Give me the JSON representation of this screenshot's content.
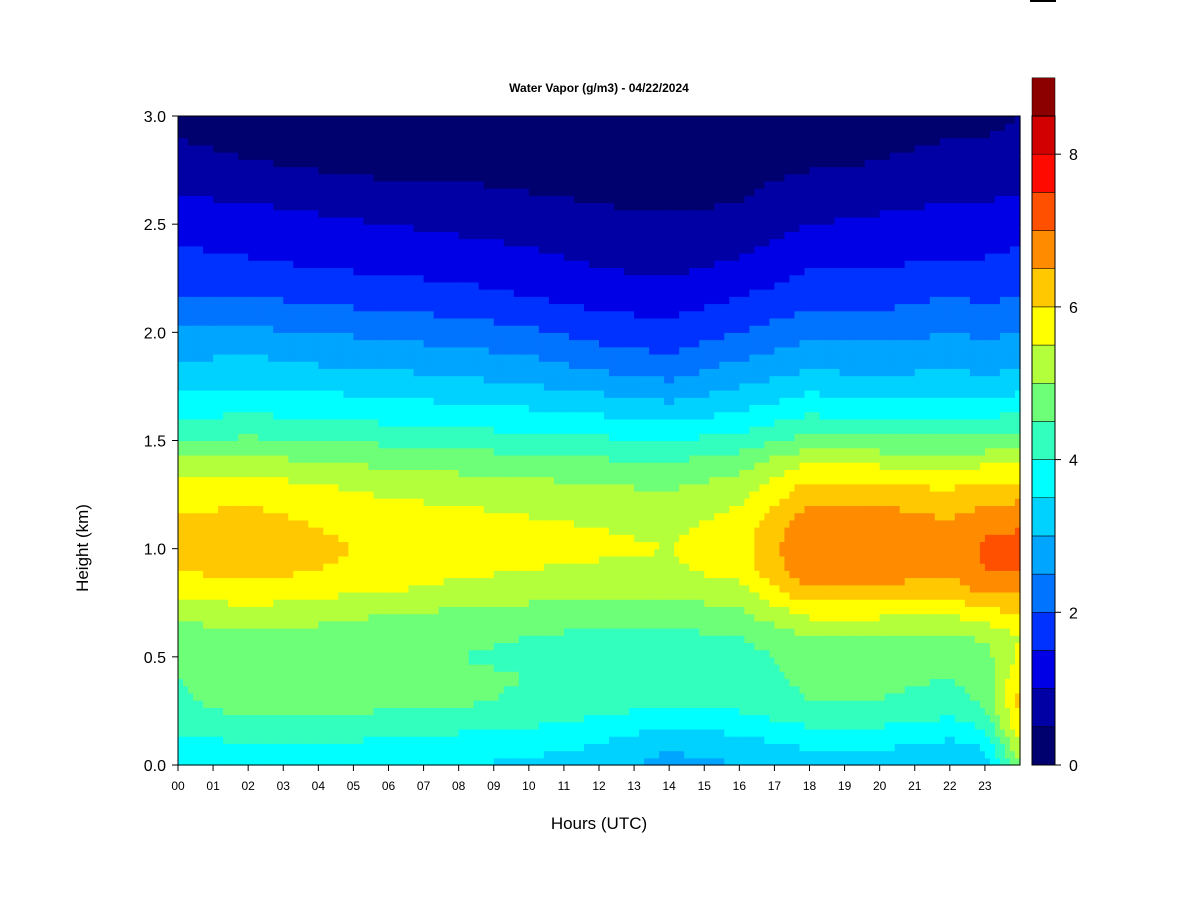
{
  "chart_data": {
    "type": "heatmap",
    "title": "Water Vapor (g/m3) - 04/22/2024",
    "xlabel": "Hours (UTC)",
    "ylabel": "Height (km)",
    "xlim": [
      0,
      24
    ],
    "ylim": [
      0.0,
      3.0
    ],
    "x_ticks": [
      "00",
      "01",
      "02",
      "03",
      "04",
      "05",
      "06",
      "07",
      "08",
      "09",
      "10",
      "11",
      "12",
      "13",
      "14",
      "15",
      "16",
      "17",
      "18",
      "19",
      "20",
      "21",
      "22",
      "23"
    ],
    "y_ticks": [
      "0.0",
      "0.5",
      "1.0",
      "1.5",
      "2.0",
      "2.5",
      "3.0"
    ],
    "y_tick_values": [
      0.0,
      0.5,
      1.0,
      1.5,
      2.0,
      2.5,
      3.0
    ],
    "colorbar": {
      "range": [
        0,
        8.5
      ],
      "step": 0.5,
      "tick_labels": [
        "0",
        "2",
        "4",
        "6",
        "8"
      ],
      "tick_values": [
        0,
        2,
        4,
        6,
        8
      ],
      "colors": [
        "#00006e",
        "#0000a5",
        "#0000e6",
        "#0032ff",
        "#0073ff",
        "#00a5ff",
        "#00d2ff",
        "#00ffff",
        "#32ffbe",
        "#6eff78",
        "#b4ff3c",
        "#ffff00",
        "#ffc800",
        "#ff8c00",
        "#ff5000",
        "#ff0a00",
        "#d20000",
        "#8c0000"
      ]
    },
    "profile_heights_km": [
      0.0,
      0.1,
      0.2,
      0.3,
      0.4,
      0.5,
      0.6,
      0.7,
      0.8,
      0.9,
      1.0,
      1.1,
      1.2,
      1.3,
      1.4,
      1.5,
      1.6,
      1.7,
      1.8,
      1.9,
      2.0,
      2.1,
      2.2,
      2.3,
      2.4,
      2.5,
      2.6,
      2.7,
      2.8,
      2.9,
      3.0
    ],
    "profiles": [
      {
        "hour": 0,
        "values": [
          3.6,
          3.8,
          4.2,
          4.4,
          4.5,
          4.6,
          4.8,
          5.1,
          5.6,
          6.0,
          6.2,
          6.1,
          5.9,
          5.6,
          5.1,
          4.5,
          4.0,
          3.6,
          3.2,
          2.9,
          2.6,
          2.2,
          1.9,
          1.7,
          1.5,
          1.3,
          1.1,
          0.8,
          0.6,
          0.5,
          0.4
        ]
      },
      {
        "hour": 2,
        "values": [
          3.8,
          4.0,
          4.4,
          4.8,
          4.8,
          4.7,
          4.9,
          5.3,
          5.8,
          6.2,
          6.4,
          6.3,
          6.0,
          5.7,
          5.2,
          4.6,
          4.1,
          3.7,
          3.3,
          3.0,
          2.6,
          2.2,
          1.9,
          1.6,
          1.4,
          1.2,
          1.0,
          0.7,
          0.5,
          0.4,
          0.3
        ]
      },
      {
        "hour": 4,
        "values": [
          3.7,
          4.0,
          4.4,
          4.9,
          4.9,
          4.7,
          4.8,
          5.2,
          5.6,
          6.0,
          6.1,
          6.0,
          5.8,
          5.5,
          5.0,
          4.5,
          4.0,
          3.6,
          3.2,
          2.8,
          2.5,
          2.1,
          1.8,
          1.5,
          1.3,
          1.1,
          0.9,
          0.6,
          0.4,
          0.3,
          0.2
        ]
      },
      {
        "hour": 6,
        "values": [
          3.6,
          3.9,
          4.3,
          4.6,
          4.6,
          4.5,
          4.7,
          5.0,
          5.5,
          5.8,
          5.9,
          5.8,
          5.6,
          5.3,
          4.9,
          4.4,
          3.9,
          3.5,
          3.1,
          2.7,
          2.4,
          2.0,
          1.7,
          1.4,
          1.2,
          1.0,
          0.8,
          0.5,
          0.4,
          0.3,
          0.2
        ]
      },
      {
        "hour": 8,
        "values": [
          3.5,
          3.8,
          4.2,
          4.6,
          4.6,
          4.5,
          4.6,
          4.9,
          5.3,
          5.6,
          5.8,
          5.7,
          5.5,
          5.2,
          4.8,
          4.3,
          3.8,
          3.4,
          3.0,
          2.6,
          2.3,
          1.9,
          1.6,
          1.3,
          1.1,
          0.9,
          0.7,
          0.5,
          0.3,
          0.2,
          0.2
        ]
      },
      {
        "hour": 10,
        "values": [
          3.4,
          3.7,
          4.1,
          4.4,
          4.5,
          4.4,
          4.5,
          4.8,
          5.2,
          5.5,
          5.6,
          5.6,
          5.4,
          5.1,
          4.7,
          4.2,
          3.7,
          3.3,
          2.8,
          2.5,
          2.1,
          1.7,
          1.4,
          1.2,
          1.0,
          0.8,
          0.6,
          0.4,
          0.3,
          0.2,
          0.1
        ]
      },
      {
        "hour": 12,
        "values": [
          3.2,
          3.5,
          3.9,
          4.3,
          4.4,
          4.3,
          4.4,
          4.7,
          5.1,
          5.4,
          5.6,
          5.5,
          5.3,
          5.0,
          4.6,
          4.1,
          3.6,
          3.1,
          2.6,
          2.2,
          1.8,
          1.5,
          1.2,
          1.0,
          0.8,
          0.6,
          0.5,
          0.3,
          0.2,
          0.1,
          0.1
        ]
      },
      {
        "hour": 14,
        "values": [
          2.8,
          3.1,
          3.6,
          4.1,
          4.2,
          4.2,
          4.4,
          4.7,
          5.1,
          5.4,
          5.5,
          5.4,
          5.2,
          4.9,
          4.5,
          4.0,
          3.4,
          2.9,
          2.4,
          2.0,
          1.7,
          1.4,
          1.1,
          0.9,
          0.7,
          0.6,
          0.4,
          0.3,
          0.2,
          0.1,
          0.1
        ]
      },
      {
        "hour": 16,
        "values": [
          3.0,
          3.3,
          3.8,
          4.2,
          4.3,
          4.3,
          4.5,
          4.9,
          5.3,
          5.7,
          5.8,
          5.7,
          5.5,
          5.2,
          4.8,
          4.2,
          3.7,
          3.2,
          2.8,
          2.4,
          2.0,
          1.7,
          1.4,
          1.1,
          0.9,
          0.7,
          0.5,
          0.4,
          0.3,
          0.2,
          0.1
        ]
      },
      {
        "hour": 18,
        "values": [
          3.2,
          3.6,
          4.1,
          4.5,
          4.6,
          4.7,
          5.0,
          5.6,
          6.4,
          6.9,
          7.0,
          6.9,
          6.5,
          6.1,
          5.5,
          4.7,
          4.1,
          3.6,
          3.1,
          2.7,
          2.4,
          2.0,
          1.7,
          1.5,
          1.2,
          1.0,
          0.8,
          0.6,
          0.4,
          0.3,
          0.2
        ]
      },
      {
        "hour": 20,
        "values": [
          3.2,
          3.6,
          4.1,
          4.5,
          4.6,
          4.7,
          5.0,
          5.6,
          6.3,
          6.8,
          6.9,
          6.8,
          6.5,
          6.0,
          5.4,
          4.6,
          4.0,
          3.5,
          3.0,
          2.7,
          2.3,
          2.0,
          1.7,
          1.5,
          1.3,
          1.1,
          0.9,
          0.6,
          0.5,
          0.4,
          0.3
        ]
      },
      {
        "hour": 22,
        "values": [
          3.1,
          3.4,
          3.9,
          4.3,
          4.5,
          4.6,
          4.9,
          5.5,
          6.2,
          6.6,
          6.7,
          6.6,
          6.3,
          5.9,
          5.3,
          4.6,
          4.0,
          3.5,
          3.1,
          2.8,
          2.5,
          2.2,
          1.9,
          1.6,
          1.4,
          1.2,
          1.0,
          0.8,
          0.6,
          0.5,
          0.4
        ]
      },
      {
        "hour": 23,
        "values": [
          3.2,
          3.6,
          4.2,
          4.6,
          4.7,
          4.8,
          5.1,
          5.8,
          6.6,
          7.0,
          7.1,
          6.9,
          6.5,
          6.1,
          5.4,
          4.6,
          4.0,
          3.5,
          3.0,
          2.7,
          2.4,
          2.1,
          1.8,
          1.6,
          1.4,
          1.2,
          1.0,
          0.8,
          0.6,
          0.5,
          0.4
        ]
      },
      {
        "hour": 24,
        "values": [
          5.0,
          5.5,
          6.0,
          6.2,
          6.0,
          5.6,
          5.5,
          6.0,
          6.6,
          7.0,
          7.1,
          7.0,
          6.6,
          6.1,
          5.5,
          4.8,
          4.2,
          3.6,
          3.1,
          2.8,
          2.5,
          2.2,
          1.9,
          1.7,
          1.5,
          1.3,
          1.1,
          0.9,
          0.7,
          0.6,
          0.5
        ]
      }
    ]
  }
}
